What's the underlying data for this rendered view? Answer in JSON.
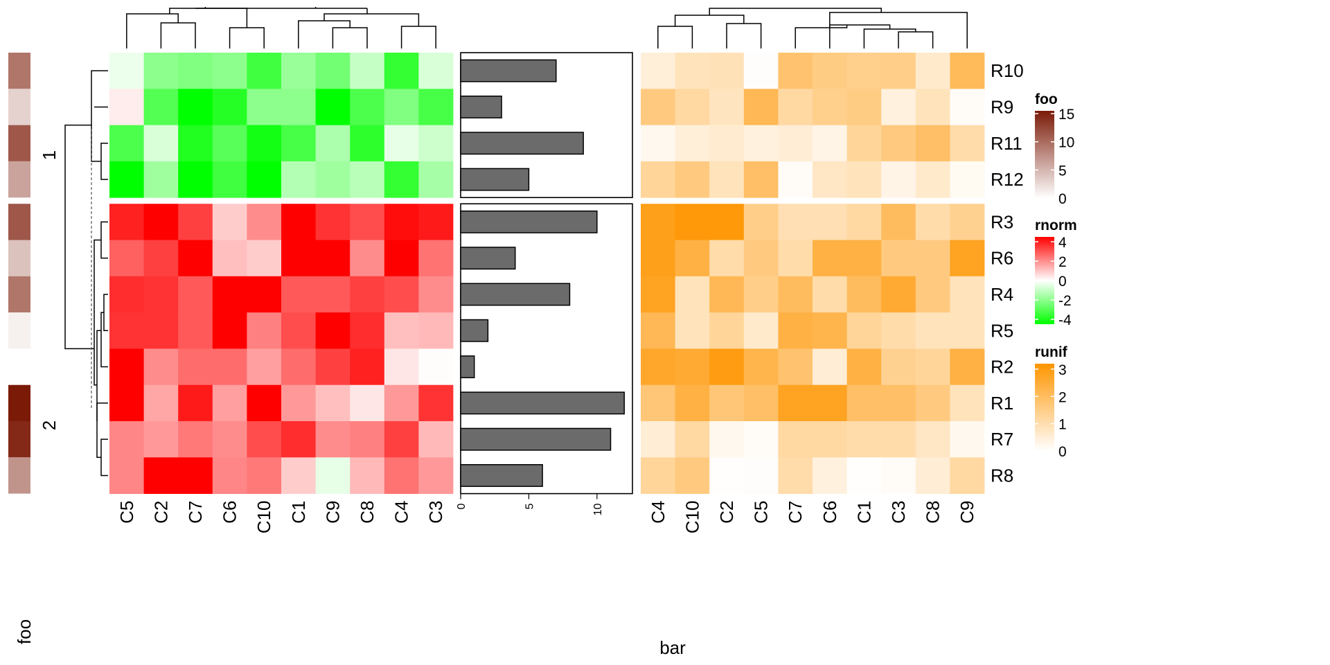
{
  "chart_data": {
    "type": "heatmap",
    "row_labels": [
      "R10",
      "R9",
      "R11",
      "R12",
      "R3",
      "R6",
      "R4",
      "R5",
      "R2",
      "R1",
      "R7",
      "R8"
    ],
    "row_slices": [
      {
        "label": "1",
        "rows": [
          "R10",
          "R9",
          "R11",
          "R12"
        ]
      },
      {
        "label": "2",
        "rows": [
          "R3",
          "R6",
          "R4",
          "R5",
          "R2",
          "R1",
          "R7",
          "R8"
        ]
      }
    ],
    "row_annotation": {
      "name": "foo",
      "values": [
        9,
        3,
        11,
        6,
        11,
        4,
        9,
        1,
        0,
        15,
        14,
        7
      ]
    },
    "heatmap_rnorm": {
      "name": "rnorm",
      "columns": [
        "C5",
        "C2",
        "C7",
        "C6",
        "C10",
        "C1",
        "C9",
        "C8",
        "C4",
        "C3"
      ],
      "values": [
        [
          -0.3,
          -1.8,
          -2.0,
          -1.8,
          -3.0,
          -1.6,
          -2.2,
          -0.9,
          -3.2,
          -0.6
        ],
        [
          0.3,
          -2.7,
          -4.0,
          -3.4,
          -1.8,
          -1.8,
          -4.5,
          -2.8,
          -2.0,
          -2.9
        ],
        [
          -2.8,
          -0.6,
          -3.5,
          -2.6,
          -3.7,
          -2.9,
          -1.3,
          -3.3,
          -0.4,
          -0.8
        ],
        [
          -4.2,
          -1.5,
          -4.2,
          -3.0,
          -4.2,
          -1.2,
          -1.5,
          -1.1,
          -3.2,
          -1.4
        ],
        [
          3.5,
          4.0,
          3.0,
          0.8,
          1.8,
          4.0,
          3.2,
          2.8,
          3.8,
          3.6
        ],
        [
          2.5,
          3.0,
          4.0,
          1.0,
          0.8,
          4.0,
          4.0,
          1.8,
          4.0,
          2.2
        ],
        [
          3.3,
          3.2,
          2.6,
          4.0,
          4.0,
          2.6,
          2.6,
          3.0,
          2.8,
          1.8
        ],
        [
          3.2,
          3.2,
          2.6,
          4.0,
          2.0,
          2.8,
          4.0,
          3.3,
          1.0,
          1.1
        ],
        [
          4.0,
          1.8,
          2.3,
          2.3,
          1.5,
          2.3,
          3.0,
          3.5,
          0.4,
          0.05
        ],
        [
          4.0,
          1.4,
          3.6,
          1.5,
          4.0,
          1.6,
          1.0,
          0.4,
          1.6,
          3.2
        ],
        [
          1.9,
          1.6,
          2.1,
          1.8,
          2.8,
          3.3,
          1.8,
          2.0,
          3.0,
          1.1
        ],
        [
          1.9,
          4.0,
          4.0,
          1.9,
          2.1,
          0.8,
          -0.4,
          1.1,
          2.2,
          1.6
        ]
      ]
    },
    "barplot": {
      "name": "bar",
      "values": [
        7,
        3,
        9,
        5,
        10,
        4,
        8,
        2,
        1,
        12,
        11,
        6
      ],
      "ticks": [
        0,
        5,
        10
      ],
      "xlim": [
        0,
        12.6
      ]
    },
    "heatmap_runif": {
      "name": "runif",
      "columns": [
        "C4",
        "C10",
        "C2",
        "C5",
        "C7",
        "C6",
        "C1",
        "C3",
        "C8",
        "C9"
      ],
      "values": [
        [
          0.45,
          0.8,
          0.85,
          0.05,
          1.7,
          1.45,
          1.35,
          1.4,
          0.6,
          1.95
        ],
        [
          1.5,
          1.1,
          0.75,
          2.0,
          1.1,
          1.35,
          1.45,
          0.4,
          0.8,
          0.1
        ],
        [
          0.2,
          0.45,
          0.55,
          0.4,
          0.5,
          0.3,
          1.2,
          1.5,
          1.8,
          1.0
        ],
        [
          1.2,
          1.5,
          0.8,
          1.8,
          0.1,
          0.7,
          0.8,
          0.3,
          0.6,
          0.15
        ],
        [
          2.7,
          2.9,
          2.9,
          1.4,
          0.9,
          0.9,
          1.1,
          1.9,
          1.0,
          1.3
        ],
        [
          2.7,
          2.2,
          1.0,
          1.5,
          1.0,
          2.2,
          2.2,
          1.5,
          1.5,
          2.6
        ],
        [
          2.6,
          0.8,
          2.0,
          1.4,
          1.9,
          1.0,
          1.9,
          2.4,
          1.5,
          0.8
        ],
        [
          2.0,
          0.8,
          1.2,
          0.6,
          2.2,
          2.1,
          1.2,
          1.0,
          0.8,
          0.8
        ],
        [
          2.5,
          2.4,
          2.8,
          2.1,
          1.7,
          0.5,
          2.2,
          1.3,
          1.2,
          2.2
        ],
        [
          1.6,
          2.2,
          1.6,
          1.8,
          2.6,
          2.6,
          1.8,
          1.8,
          1.5,
          0.8
        ],
        [
          0.5,
          1.1,
          0.2,
          0.1,
          1.1,
          1.1,
          1.0,
          1.0,
          0.7,
          0.2
        ],
        [
          1.2,
          1.5,
          0.03,
          0.05,
          1.0,
          0.4,
          0.03,
          0.1,
          0.5,
          1.1
        ]
      ]
    },
    "legends": [
      {
        "title": "foo",
        "ticks": [
          "0",
          "5",
          "10",
          "15"
        ],
        "colors": [
          "#ffffff",
          "#7b1a07"
        ],
        "range": [
          0,
          15.5
        ]
      },
      {
        "title": "rnorm",
        "ticks": [
          "-4",
          "-2",
          "0",
          "2",
          "4"
        ],
        "colors": [
          "#00ff00",
          "#ffffff",
          "#ff0000"
        ],
        "range": [
          -4.5,
          4.5
        ]
      },
      {
        "title": "runif",
        "ticks": [
          "0",
          "1",
          "2",
          "3"
        ],
        "colors": [
          "#ffffff",
          "#ff9500"
        ],
        "range": [
          0,
          3.2
        ]
      }
    ],
    "slice_label_foo": "foo"
  }
}
